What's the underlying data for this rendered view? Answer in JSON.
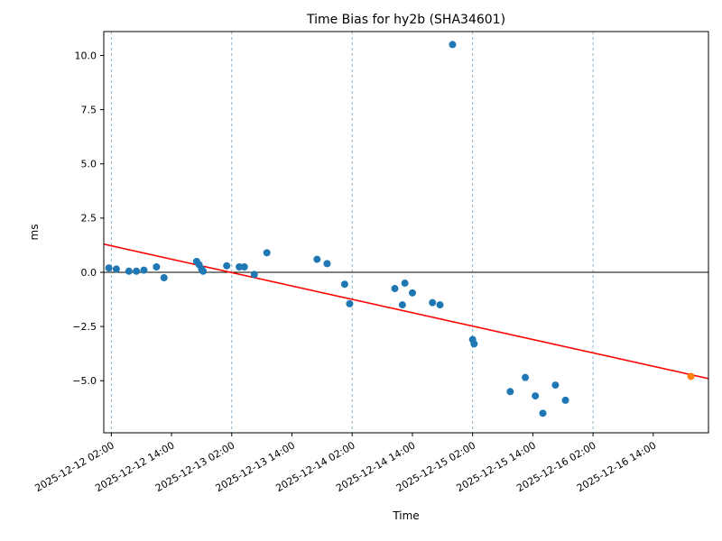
{
  "title": "Time Bias for hy2b (SHA34601)",
  "chart_data": {
    "type": "scatter",
    "title": "Time Bias for hy2b (SHA34601)",
    "xlabel": "Time",
    "ylabel": "ms",
    "x_unit": "hours since 2025-12-12 00:00",
    "xlim": [
      0.5,
      121
    ],
    "ylim": [
      -7.4,
      11.1
    ],
    "grid": "vertical-dashed",
    "grid_color": "#7da7c4",
    "grid_hours": [
      2,
      26,
      50,
      74,
      98
    ],
    "x_ticks": [
      {
        "hour": 2,
        "label": "2025-12-12 02:00"
      },
      {
        "hour": 14,
        "label": "2025-12-12 14:00"
      },
      {
        "hour": 26,
        "label": "2025-12-13 02:00"
      },
      {
        "hour": 38,
        "label": "2025-12-13 14:00"
      },
      {
        "hour": 50,
        "label": "2025-12-14 02:00"
      },
      {
        "hour": 62,
        "label": "2025-12-14 14:00"
      },
      {
        "hour": 74,
        "label": "2025-12-15 02:00"
      },
      {
        "hour": 86,
        "label": "2025-12-15 14:00"
      },
      {
        "hour": 98,
        "label": "2025-12-16 02:00"
      },
      {
        "hour": 110,
        "label": "2025-12-16 14:00"
      }
    ],
    "y_ticks": [
      {
        "value": 10.0,
        "label": "10.0"
      },
      {
        "value": 7.5,
        "label": "7.5"
      },
      {
        "value": 5.0,
        "label": "5.0"
      },
      {
        "value": 2.5,
        "label": "2.5"
      },
      {
        "value": 0.0,
        "label": "0.0"
      },
      {
        "value": -2.5,
        "label": "−2.5"
      },
      {
        "value": -5.0,
        "label": "−5.0"
      }
    ],
    "zero_line": {
      "value": 0,
      "color": "#000000"
    },
    "trend_line": {
      "name": "linear-fit",
      "color": "#ff0000",
      "points": [
        [
          0.5,
          1.3
        ],
        [
          121.0,
          -4.9
        ]
      ]
    },
    "series": [
      {
        "name": "time-bias-samples",
        "color": "#1f77b4",
        "marker_radius": 4,
        "points": [
          [
            1.5,
            0.2
          ],
          [
            3.0,
            0.15
          ],
          [
            5.5,
            0.05
          ],
          [
            7.0,
            0.05
          ],
          [
            8.5,
            0.1
          ],
          [
            11.0,
            0.25
          ],
          [
            12.5,
            -0.25
          ],
          [
            19.0,
            0.5
          ],
          [
            19.5,
            0.35
          ],
          [
            20.0,
            0.15
          ],
          [
            20.3,
            0.05
          ],
          [
            25.0,
            0.3
          ],
          [
            27.5,
            0.25
          ],
          [
            28.5,
            0.25
          ],
          [
            30.5,
            -0.1
          ],
          [
            33.0,
            0.9
          ],
          [
            43.0,
            0.6
          ],
          [
            45.0,
            0.4
          ],
          [
            48.5,
            -0.55
          ],
          [
            49.5,
            -1.45
          ],
          [
            58.5,
            -0.75
          ],
          [
            60.0,
            -1.5
          ],
          [
            60.5,
            -0.5
          ],
          [
            62.0,
            -0.95
          ],
          [
            66.0,
            -1.4
          ],
          [
            67.5,
            -1.5
          ],
          [
            70.0,
            10.5
          ],
          [
            74.0,
            -3.1
          ],
          [
            74.3,
            -3.3
          ],
          [
            81.5,
            -5.5
          ],
          [
            84.5,
            -4.85
          ],
          [
            86.5,
            -5.7
          ],
          [
            88.0,
            -6.5
          ],
          [
            90.5,
            -5.2
          ],
          [
            92.5,
            -5.9
          ]
        ]
      },
      {
        "name": "latest-sample",
        "color": "#ff7f0e",
        "marker_radius": 4,
        "points": [
          [
            117.5,
            -4.8
          ]
        ]
      }
    ]
  }
}
